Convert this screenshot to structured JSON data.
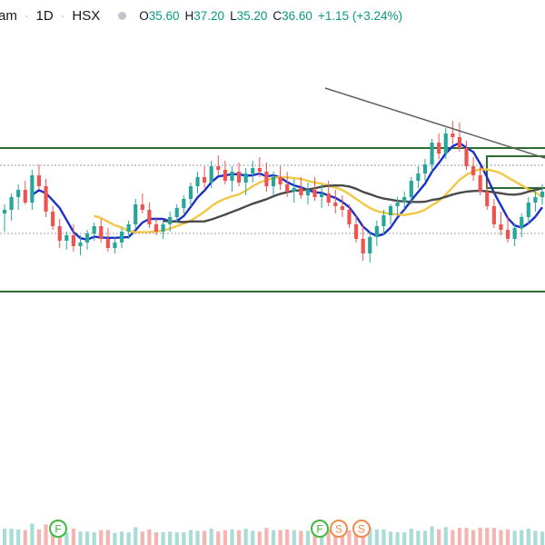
{
  "header": {
    "symbol": "am",
    "interval": "1D",
    "exchange": "HSX",
    "ohlc": {
      "o_label": "O",
      "o": "35.60",
      "h_label": "H",
      "h": "37.20",
      "l_label": "L",
      "l": "35.20",
      "c_label": "C",
      "c": "36.60"
    },
    "change": "+1.15 (+3.24%)"
  },
  "colors": {
    "up": "#26a69a",
    "down": "#ef5350",
    "ma_fast": "#1c2fc8",
    "ma_medium": "#f2c744",
    "ma_slow": "#4a4a4a",
    "zone": "#2e6b2e",
    "trendline": "#5f5f5f",
    "marker": "#3dbb3d",
    "marker_s": "#f08c4a"
  },
  "chart_data": {
    "type": "candlestick",
    "series": [
      {
        "name": "",
        "candles": [
          [
            0.0,
            0.5,
            -1.0,
            0.2
          ],
          [
            0.2,
            1.1,
            -0.4,
            0.9
          ],
          [
            0.9,
            1.6,
            0.2,
            1.3
          ],
          [
            1.3,
            1.8,
            0.5,
            0.6
          ],
          [
            0.6,
            2.4,
            0.2,
            2.1
          ],
          [
            2.1,
            2.7,
            1.3,
            1.5
          ],
          [
            1.5,
            1.9,
            -0.2,
            0.1
          ],
          [
            0.1,
            0.4,
            -0.9,
            -0.7
          ],
          [
            -0.7,
            -0.3,
            -1.9,
            -1.5
          ],
          [
            -1.5,
            -1.0,
            -2.0,
            -1.2
          ],
          [
            -1.2,
            -0.6,
            -2.1,
            -1.8
          ],
          [
            -1.8,
            -1.2,
            -2.3,
            -1.6
          ],
          [
            -1.6,
            -0.9,
            -2.0,
            -1.1
          ],
          [
            -1.1,
            -0.5,
            -1.5,
            -0.7
          ],
          [
            -0.7,
            -0.3,
            -1.6,
            -1.4
          ],
          [
            -1.4,
            -0.8,
            -2.1,
            -1.9
          ],
          [
            -1.9,
            -1.3,
            -2.2,
            -1.6
          ],
          [
            -1.6,
            -0.8,
            -1.9,
            -1.0
          ],
          [
            -1.0,
            -0.4,
            -1.4,
            -0.6
          ],
          [
            -0.6,
            0.8,
            -0.9,
            0.5
          ],
          [
            0.5,
            1.1,
            0.0,
            0.2
          ],
          [
            0.2,
            0.6,
            -0.8,
            -0.6
          ],
          [
            -0.6,
            -0.2,
            -1.2,
            -1.0
          ],
          [
            -1.0,
            -0.4,
            -1.4,
            -0.6
          ],
          [
            -0.6,
            0.1,
            -1.0,
            -0.2
          ],
          [
            -0.2,
            0.5,
            -0.5,
            0.3
          ],
          [
            0.3,
            1.0,
            0.0,
            0.8
          ],
          [
            0.8,
            1.7,
            0.4,
            1.5
          ],
          [
            1.5,
            2.3,
            1.1,
            2.0
          ],
          [
            2.0,
            2.6,
            1.4,
            1.7
          ],
          [
            1.7,
            2.9,
            1.4,
            2.6
          ],
          [
            2.6,
            3.2,
            2.1,
            2.4
          ],
          [
            2.4,
            2.9,
            1.6,
            1.8
          ],
          [
            1.8,
            2.6,
            1.2,
            2.3
          ],
          [
            2.3,
            2.8,
            1.5,
            1.7
          ],
          [
            1.7,
            2.5,
            1.0,
            2.2
          ],
          [
            2.2,
            2.9,
            1.7,
            2.5
          ],
          [
            2.5,
            3.1,
            2.0,
            2.3
          ],
          [
            2.3,
            2.8,
            1.2,
            1.5
          ],
          [
            1.5,
            2.3,
            1.0,
            2.0
          ],
          [
            2.0,
            2.6,
            1.3,
            1.6
          ],
          [
            1.6,
            2.3,
            0.9,
            1.2
          ],
          [
            1.2,
            1.9,
            0.6,
            1.4
          ],
          [
            1.4,
            2.0,
            0.8,
            1.0
          ],
          [
            1.0,
            1.7,
            0.5,
            1.3
          ],
          [
            1.3,
            2.0,
            0.7,
            0.9
          ],
          [
            0.9,
            1.6,
            0.3,
            1.1
          ],
          [
            1.1,
            1.8,
            0.4,
            0.6
          ],
          [
            0.6,
            1.3,
            0.0,
            0.4
          ],
          [
            0.4,
            1.0,
            -0.2,
            0.2
          ],
          [
            0.2,
            0.5,
            -0.8,
            -0.6
          ],
          [
            -0.6,
            -0.1,
            -1.6,
            -1.4
          ],
          [
            -1.4,
            -0.6,
            -2.6,
            -2.2
          ],
          [
            -2.2,
            -1.0,
            -2.7,
            -1.3
          ],
          [
            -1.3,
            -0.4,
            -1.8,
            -0.7
          ],
          [
            -0.7,
            0.2,
            -1.2,
            -0.1
          ],
          [
            -0.1,
            0.5,
            -0.6,
            0.4
          ],
          [
            0.4,
            0.9,
            -0.1,
            0.6
          ],
          [
            0.6,
            1.2,
            0.2,
            0.9
          ],
          [
            0.9,
            2.0,
            0.5,
            1.8
          ],
          [
            1.8,
            2.6,
            1.4,
            2.2
          ],
          [
            2.2,
            3.0,
            1.8,
            2.7
          ],
          [
            2.7,
            4.1,
            2.3,
            3.9
          ],
          [
            3.9,
            4.4,
            3.0,
            3.3
          ],
          [
            3.3,
            4.7,
            3.0,
            4.4
          ],
          [
            4.4,
            5.1,
            3.8,
            4.2
          ],
          [
            4.2,
            5.0,
            3.4,
            3.6
          ],
          [
            3.6,
            4.0,
            2.4,
            2.6
          ],
          [
            2.6,
            3.1,
            1.8,
            2.1
          ],
          [
            2.1,
            2.6,
            1.0,
            1.2
          ],
          [
            1.2,
            1.8,
            0.2,
            0.4
          ],
          [
            0.4,
            0.8,
            -0.8,
            -0.6
          ],
          [
            -0.6,
            0.1,
            -1.2,
            -0.9
          ],
          [
            -0.9,
            -0.2,
            -1.6,
            -1.4
          ],
          [
            -1.4,
            -0.6,
            -1.8,
            -0.8
          ],
          [
            -0.8,
            0.0,
            -1.3,
            -0.2
          ],
          [
            -0.2,
            0.9,
            -0.6,
            0.6
          ],
          [
            0.6,
            1.3,
            0.1,
            0.9
          ],
          [
            0.9,
            1.6,
            0.5,
            1.2
          ]
        ]
      }
    ],
    "moving_averages": [
      {
        "name": "",
        "color_key": "ma_fast"
      },
      {
        "name": "",
        "color_key": "ma_medium"
      },
      {
        "name": "",
        "color_key": "ma_slow"
      }
    ],
    "markers": [
      {
        "label": "F",
        "color_key": "marker"
      },
      {
        "label": "F",
        "color_key": "marker"
      },
      {
        "label": "S",
        "color_key": "marker_s"
      },
      {
        "label": "S",
        "color_key": "marker_s"
      }
    ],
    "grid": false,
    "legend": "none"
  }
}
